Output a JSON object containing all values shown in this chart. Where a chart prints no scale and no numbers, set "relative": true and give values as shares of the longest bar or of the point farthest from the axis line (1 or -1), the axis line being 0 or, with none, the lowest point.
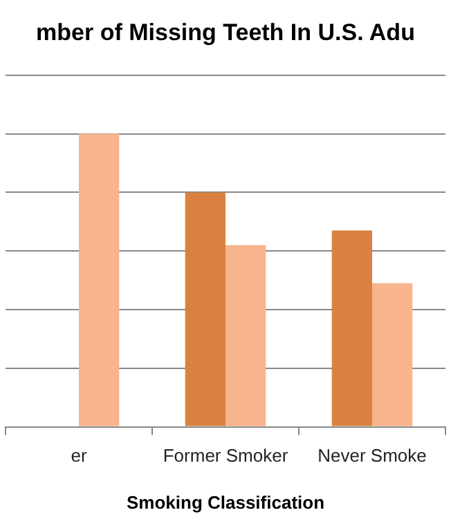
{
  "chart_data": {
    "type": "bar",
    "title": "mber of Missing Teeth In U.S. Adu",
    "xlabel": "Smoking Classification",
    "categories": [
      "er",
      "Former Smoker",
      "Never Smoke"
    ],
    "series": [
      {
        "color": "#d9823f",
        "values": [
          null,
          0.8,
          0.67
        ]
      },
      {
        "color": "#f8b48d",
        "values": [
          1,
          0.62,
          0.49
        ]
      }
    ],
    "relative": true,
    "grid": "y"
  }
}
